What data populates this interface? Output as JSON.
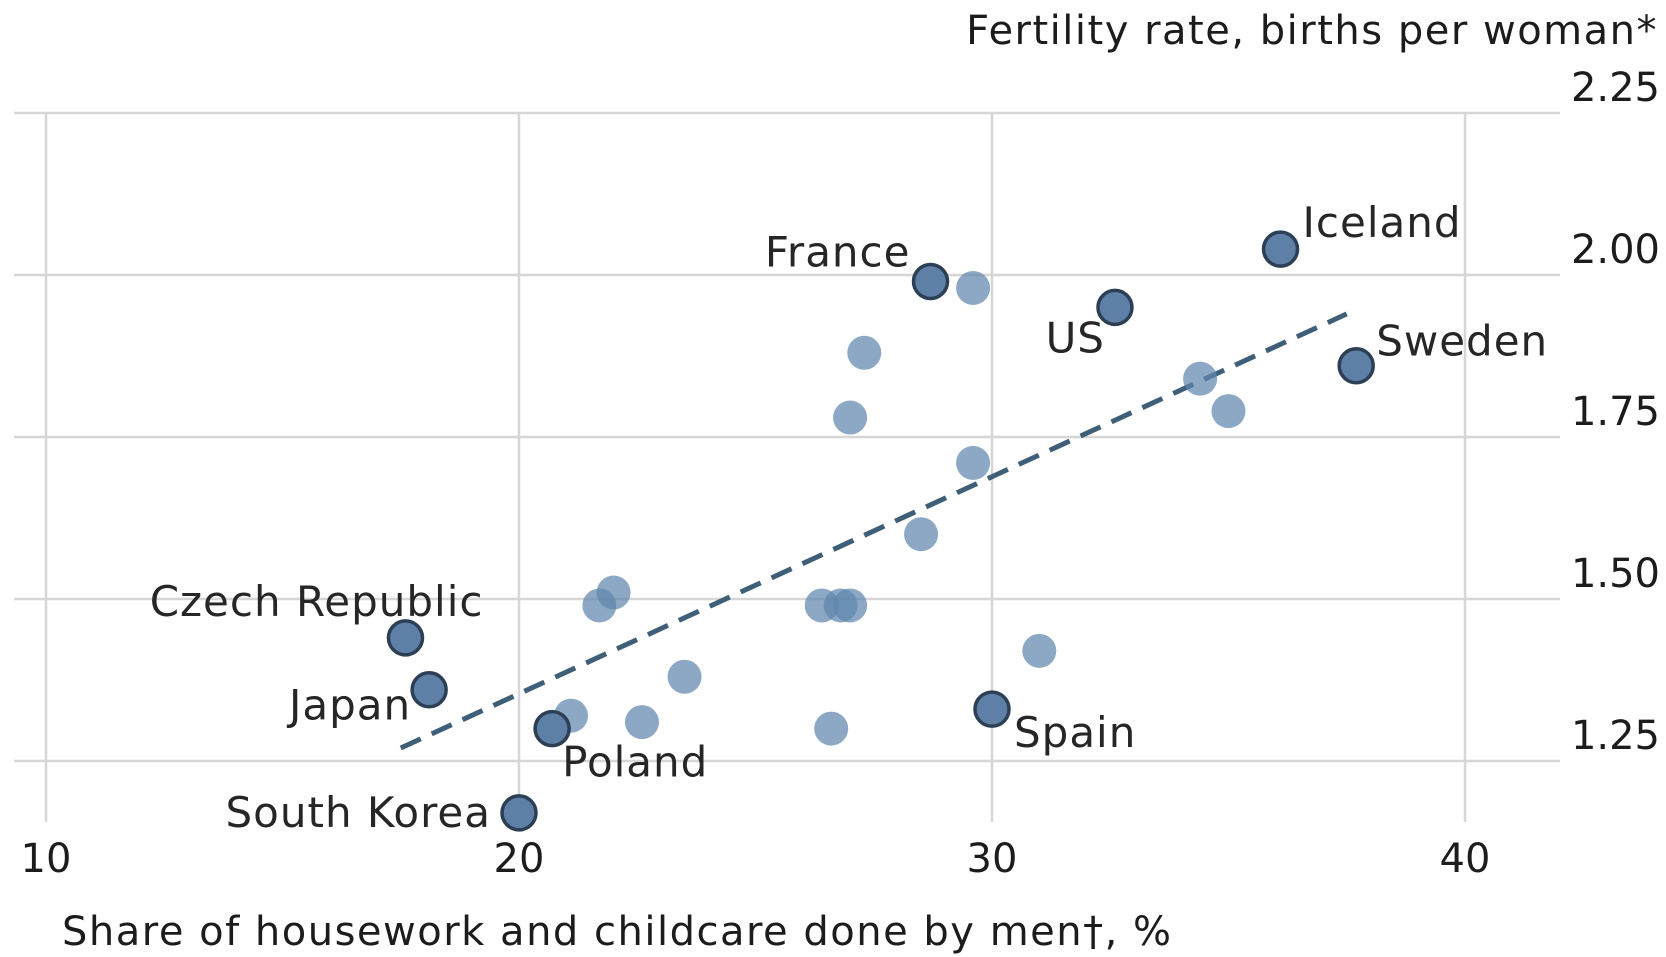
{
  "chart_data": {
    "type": "scatter",
    "ylabel": "Fertility rate, births per woman*",
    "xlabel": "Share of housework and childcare done by men†, %",
    "xlim": [
      10,
      45
    ],
    "ylim": [
      1.14,
      2.25
    ],
    "xticks": [
      10,
      20,
      30,
      40
    ],
    "yticks": [
      1.25,
      1.5,
      1.75,
      2.0,
      2.25
    ],
    "ytick_labels": [
      "1.25",
      "1.50",
      "1.75",
      "2.00",
      "2.25"
    ],
    "grid": true,
    "colors": {
      "point": "#5f86ad",
      "highlight_point": "#5e7fa6",
      "highlight_outline": "#2c3f55",
      "trend": "#3f5f78",
      "gridline": "#d6d6d6"
    },
    "points": [
      {
        "x": 36.1,
        "y": 2.04,
        "label": "Iceland",
        "highlight": true
      },
      {
        "x": 28.7,
        "y": 1.99,
        "label": "France",
        "highlight": true
      },
      {
        "x": 32.6,
        "y": 1.95,
        "label": "US",
        "highlight": true
      },
      {
        "x": 37.7,
        "y": 1.86,
        "label": "Sweden",
        "highlight": true
      },
      {
        "x": 17.6,
        "y": 1.44,
        "label": "Czech Republic",
        "highlight": true
      },
      {
        "x": 18.1,
        "y": 1.36,
        "label": "Japan",
        "highlight": true
      },
      {
        "x": 20.7,
        "y": 1.3,
        "label": "Poland",
        "highlight": true
      },
      {
        "x": 30.0,
        "y": 1.33,
        "label": "Spain",
        "highlight": true
      },
      {
        "x": 20.0,
        "y": 1.17,
        "label": "South Korea",
        "highlight": true
      },
      {
        "x": 29.6,
        "y": 1.98
      },
      {
        "x": 27.3,
        "y": 1.88
      },
      {
        "x": 27.0,
        "y": 1.78
      },
      {
        "x": 34.4,
        "y": 1.84
      },
      {
        "x": 35.0,
        "y": 1.79
      },
      {
        "x": 29.6,
        "y": 1.71
      },
      {
        "x": 28.5,
        "y": 1.6
      },
      {
        "x": 22.0,
        "y": 1.51
      },
      {
        "x": 21.7,
        "y": 1.49
      },
      {
        "x": 26.4,
        "y": 1.49
      },
      {
        "x": 26.8,
        "y": 1.49
      },
      {
        "x": 27.0,
        "y": 1.49
      },
      {
        "x": 31.0,
        "y": 1.42
      },
      {
        "x": 23.5,
        "y": 1.38
      },
      {
        "x": 21.1,
        "y": 1.32
      },
      {
        "x": 22.6,
        "y": 1.31
      },
      {
        "x": 26.6,
        "y": 1.3
      }
    ],
    "trend": {
      "x": [
        17.5,
        37.5
      ],
      "y": [
        1.27,
        1.94
      ],
      "style": "dashed"
    }
  }
}
